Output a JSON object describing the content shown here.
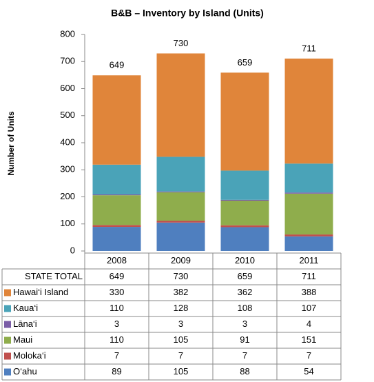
{
  "chart_data": {
    "type": "bar",
    "stacked": true,
    "title": "B&B – Inventory by Island (Units)",
    "y_label": "Number of Units",
    "categories": [
      "2008",
      "2009",
      "2010",
      "2011"
    ],
    "total": {
      "name": "STATE TOTAL",
      "values": [
        649,
        730,
        659,
        711
      ]
    },
    "series": [
      {
        "name": "Hawai‘i Island",
        "color": "#e0853a",
        "values": [
          330,
          382,
          362,
          388
        ]
      },
      {
        "name": "Kaua‘i",
        "color": "#4aa3b8",
        "values": [
          110,
          128,
          108,
          107
        ]
      },
      {
        "name": "Lāna‘i",
        "color": "#7b5ea7",
        "values": [
          3,
          3,
          3,
          4
        ]
      },
      {
        "name": "Maui",
        "color": "#8fad4c",
        "values": [
          110,
          105,
          91,
          151
        ]
      },
      {
        "name": "Moloka‘i",
        "color": "#c0504d",
        "values": [
          7,
          7,
          7,
          7
        ]
      },
      {
        "name": "O‘ahu",
        "color": "#4f7fbf",
        "values": [
          89,
          105,
          88,
          54
        ]
      }
    ],
    "ylim": [
      0,
      800
    ],
    "yticks": [
      0,
      100,
      200,
      300,
      400,
      500,
      600,
      700,
      800
    ],
    "grid": false
  }
}
